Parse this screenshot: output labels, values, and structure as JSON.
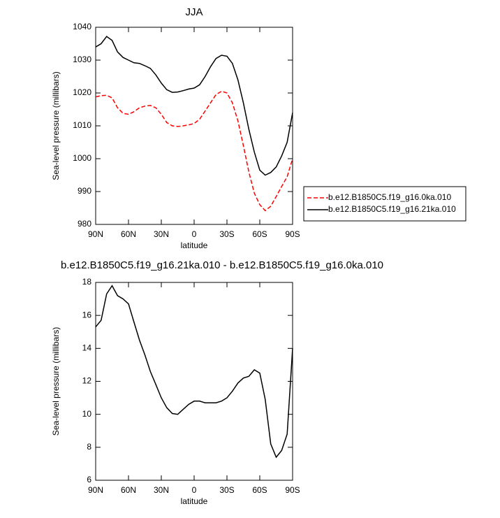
{
  "chart_data": [
    {
      "type": "line",
      "title": "JJA",
      "x_label": "latitude",
      "y_label": "Sea-level pressure (millibars)",
      "x": [
        90,
        85,
        80,
        75,
        70,
        65,
        60,
        55,
        50,
        45,
        40,
        35,
        30,
        25,
        20,
        15,
        10,
        5,
        0,
        -5,
        -10,
        -15,
        -20,
        -25,
        -30,
        -35,
        -40,
        -45,
        -50,
        -55,
        -60,
        -65,
        -70,
        -75,
        -80,
        -85,
        -90
      ],
      "xlim": [
        90,
        -90
      ],
      "xticks": [
        {
          "value": 90,
          "label": "90N"
        },
        {
          "value": 60,
          "label": "60N"
        },
        {
          "value": 30,
          "label": "30N"
        },
        0,
        {
          "value": -30,
          "label": "30S"
        },
        {
          "value": -60,
          "label": "60S"
        },
        {
          "value": -90,
          "label": "90S"
        }
      ],
      "ylim": [
        980,
        1040
      ],
      "yticks": [
        980,
        990,
        1000,
        1010,
        1020,
        1030,
        1040
      ],
      "legend": "right",
      "series": [
        {
          "name": "b.e12.B1850C5.f19_g16.0ka.010",
          "color": "#ff0000",
          "dashed": true,
          "values": [
            1018.8,
            1019.2,
            1019.3,
            1018.5,
            1015.5,
            1013.8,
            1013.5,
            1014.3,
            1015.5,
            1016,
            1016.2,
            1015.5,
            1013.5,
            1011,
            1010,
            1009.8,
            1010,
            1010.3,
            1010.7,
            1012,
            1014.5,
            1017,
            1019.5,
            1020.5,
            1020,
            1017,
            1011.5,
            1004,
            996,
            989.5,
            986,
            984.2,
            985.5,
            988.5,
            991.5,
            994.5,
            1000
          ]
        },
        {
          "name": "b.e12.B1850C5.f19_g16.21ka.010",
          "color": "#000000",
          "dashed": false,
          "values": [
            1034,
            1035,
            1037.2,
            1036,
            1032.5,
            1030.8,
            1030,
            1029.2,
            1029,
            1028.3,
            1027.5,
            1025.5,
            1023,
            1021,
            1020.2,
            1020.3,
            1020.7,
            1021.2,
            1021.5,
            1022.5,
            1025,
            1028,
            1030.5,
            1031.5,
            1031.2,
            1029,
            1024,
            1017,
            1009,
            1002,
            996.5,
            995,
            995.8,
            997.5,
            1000.8,
            1005,
            1014
          ]
        }
      ]
    },
    {
      "type": "line",
      "title": "b.e12.B1850C5.f19_g16.21ka.010 - b.e12.B1850C5.f19_g16.0ka.010",
      "x_label": "latitude",
      "y_label": "Sea-level pressure (millibars)",
      "x": [
        90,
        85,
        80,
        75,
        70,
        65,
        60,
        55,
        50,
        45,
        40,
        35,
        30,
        25,
        20,
        15,
        10,
        5,
        0,
        -5,
        -10,
        -15,
        -20,
        -25,
        -30,
        -35,
        -40,
        -45,
        -50,
        -55,
        -60,
        -65,
        -70,
        -75,
        -80,
        -85,
        -90
      ],
      "xlim": [
        90,
        -90
      ],
      "xticks": [
        {
          "value": 90,
          "label": "90N"
        },
        {
          "value": 60,
          "label": "60N"
        },
        {
          "value": 30,
          "label": "30N"
        },
        0,
        {
          "value": -30,
          "label": "30S"
        },
        {
          "value": -60,
          "label": "60S"
        },
        {
          "value": -90,
          "label": "90S"
        }
      ],
      "ylim": [
        6,
        18
      ],
      "yticks": [
        6,
        8,
        10,
        12,
        14,
        16,
        18
      ],
      "series": [
        {
          "color": "#000000",
          "dashed": false,
          "values": [
            15.3,
            15.7,
            17.3,
            17.8,
            17.2,
            17.0,
            16.7,
            15.6,
            14.5,
            13.6,
            12.6,
            11.8,
            11.0,
            10.4,
            10.05,
            10.0,
            10.3,
            10.6,
            10.8,
            10.8,
            10.7,
            10.7,
            10.7,
            10.8,
            11.0,
            11.4,
            11.9,
            12.2,
            12.3,
            12.7,
            12.5,
            10.9,
            8.2,
            7.4,
            7.8,
            8.8,
            14
          ]
        }
      ]
    }
  ]
}
